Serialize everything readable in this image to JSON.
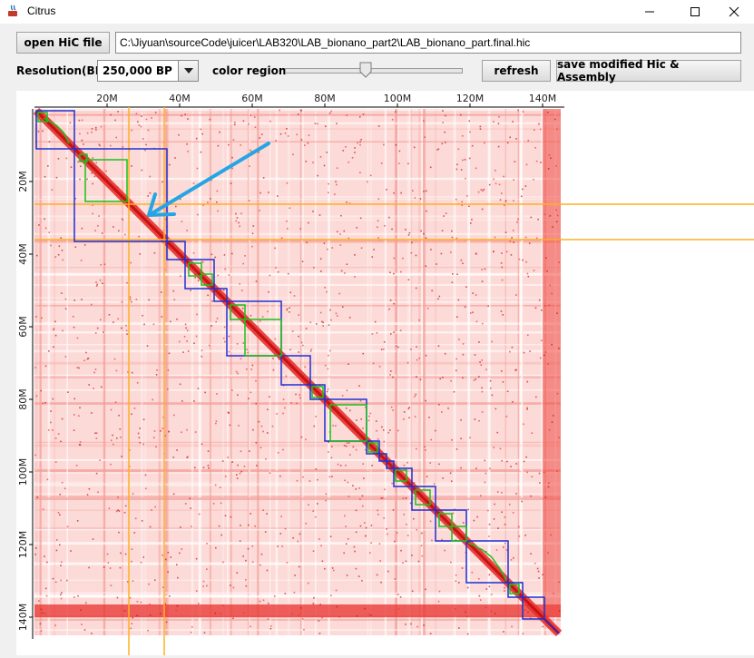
{
  "window": {
    "title": "Citrus",
    "minimize_icon": "minimize-icon",
    "maximize_icon": "maximize-icon",
    "close_icon": "close-icon"
  },
  "toolbar": {
    "open_label": "open HiC file",
    "file_path": "C:\\Jiyuan\\sourceCode\\juicer\\LAB320\\LAB_bionano_part2\\LAB_bionano_part.final.hic",
    "resolution_label": "Resolution(BP)",
    "resolution_value": "250,000 BP",
    "color_region_label": "color region",
    "color_region_level": 0.45,
    "refresh_label": "refresh",
    "save_label": "save modified Hic & Assembly"
  },
  "heatmap": {
    "x_ticks": [
      "20M",
      "40M",
      "60M",
      "80M",
      "100M",
      "120M",
      "140M"
    ],
    "y_ticks": [
      "20M",
      "40M",
      "60M",
      "80M",
      "100M",
      "120M",
      "140M"
    ],
    "colors": {
      "heat": "#e8322e",
      "background": "#fde3e1",
      "contig_box": "#1f2fd6",
      "scaffold_box": "#19c21a",
      "guide_line": "#ffb020",
      "arrow": "#26a5e4"
    }
  }
}
